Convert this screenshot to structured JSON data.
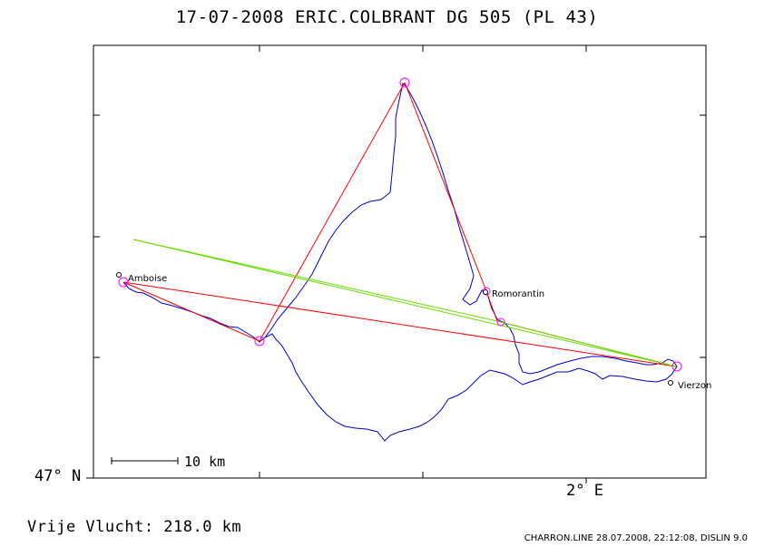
{
  "title": "17-07-2008    ERIC.COLBRANT    DG 505 (PL 43)",
  "axes": {
    "lat_label": "47° N",
    "lon_label": "2° E"
  },
  "scale_bar": {
    "label": "10 km"
  },
  "distance_label": "Vrije Vlucht:  218.0 km",
  "footer": "CHARRON.LINE 28.07.2008, 22:12:08, DISLIN 9.0",
  "cities": [
    {
      "name": "Amboise"
    },
    {
      "name": "Romorantin"
    },
    {
      "name": "Vierzon"
    }
  ],
  "colors": {
    "track": "#0000cc",
    "task": "#ff0000",
    "start_leg": "#66dd00",
    "turnpoint": "#ff00ff",
    "frame": "#000000"
  }
}
